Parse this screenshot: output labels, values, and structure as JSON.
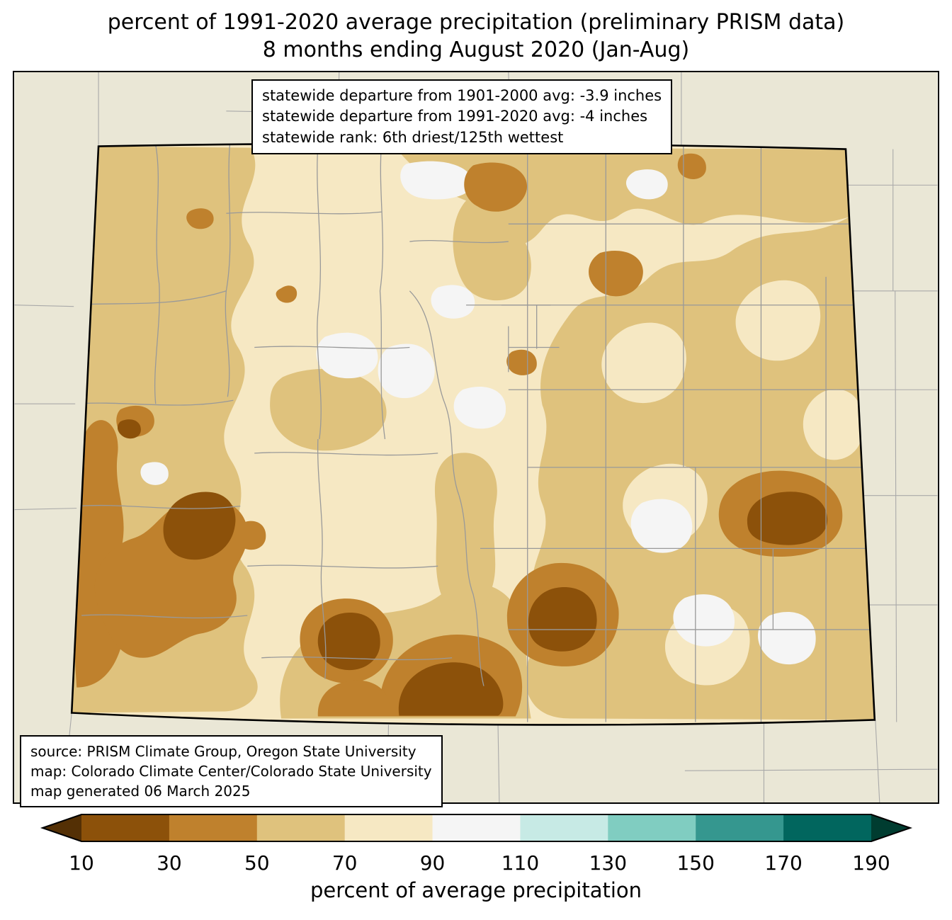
{
  "title": {
    "line1": "percent of 1991-2020 average precipitation (preliminary PRISM data)",
    "line2": "8 months ending August 2020 (Jan-Aug)"
  },
  "stats_box": {
    "lines": [
      "statewide departure from 1901-2000 avg: -3.9 inches",
      "statewide departure from 1991-2020 avg: -4 inches",
      "statewide rank: 6th driest/125th wettest"
    ]
  },
  "source_box": {
    "lines": [
      "source: PRISM Climate Group, Oregon State University",
      "map: Colorado Climate Center/Colorado State University",
      "map generated 06 March 2025"
    ]
  },
  "colorbar": {
    "label": "percent of average precipitation",
    "ticks": [
      10,
      30,
      50,
      70,
      90,
      110,
      130,
      150,
      170,
      190
    ],
    "segment_colors": [
      "#8c510a",
      "#bf812d",
      "#dfc27d",
      "#f6e8c3",
      "#f5f5f5",
      "#c7eae5",
      "#80cdc1",
      "#35978f",
      "#01665e"
    ],
    "arrow_left_color": "#543005",
    "arrow_right_color": "#003c30"
  },
  "map_colors": {
    "surround": "#eae7d6",
    "state_border": "#000000",
    "county_line": "#999999",
    "outside_line": "#a9a9a9",
    "base_70_90": "#f6e8c3",
    "tan_50_70": "#dfc27d",
    "brown_30_50": "#bf812d",
    "dark_10_30": "#8c510a",
    "white_90_110": "#f5f5f5",
    "teal_110_130": "#c7eae5"
  }
}
